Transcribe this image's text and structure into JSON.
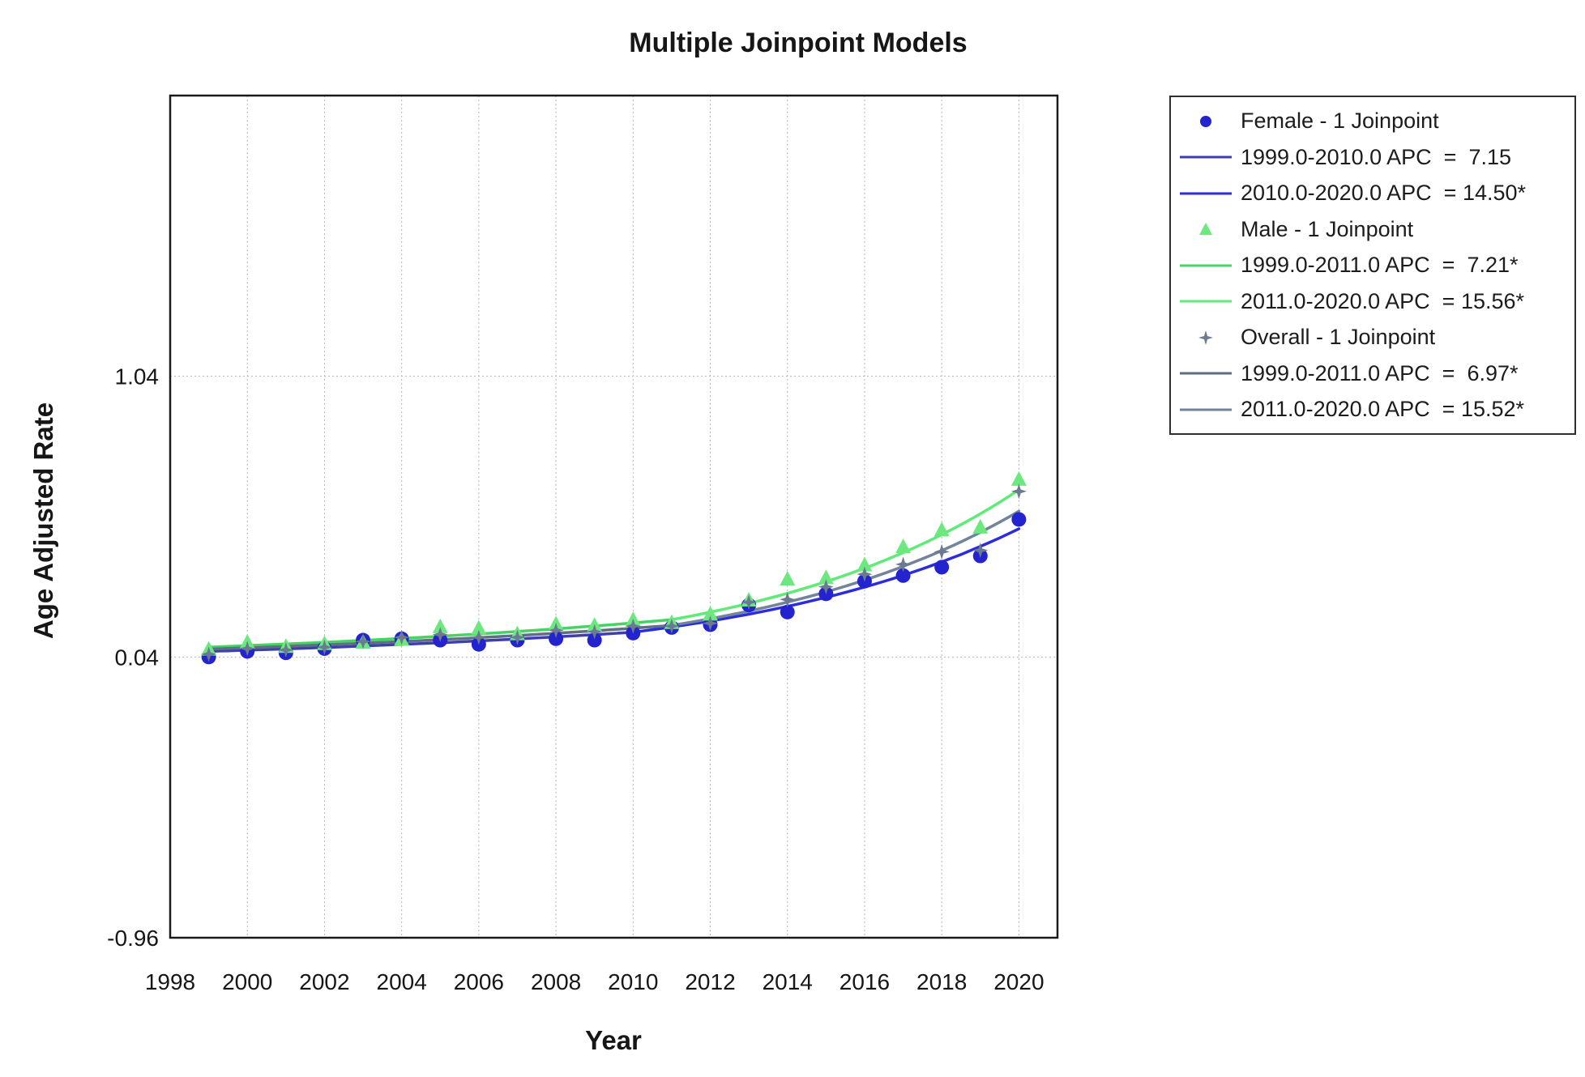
{
  "title": "Multiple Joinpoint Models",
  "axes": {
    "x_label": "Year",
    "y_label": "Age Adjusted Rate"
  },
  "chart_data": {
    "type": "scatter",
    "title": "Multiple Joinpoint Models",
    "xlabel": "Year",
    "ylabel": "Age Adjusted Rate",
    "xlim": [
      1998,
      2021
    ],
    "ylim": [
      -0.96,
      2.04
    ],
    "x_ticks": [
      1998,
      2000,
      2002,
      2004,
      2006,
      2008,
      2010,
      2012,
      2014,
      2016,
      2018,
      2020
    ],
    "y_ticks": [
      -0.96,
      0.04,
      1.04
    ],
    "grid": true,
    "grid_style": "dotted",
    "legend_position": "outside-right",
    "x": [
      1999,
      2000,
      2001,
      2002,
      2003,
      2004,
      2005,
      2006,
      2007,
      2008,
      2009,
      2010,
      2011,
      2012,
      2013,
      2014,
      2015,
      2016,
      2017,
      2018,
      2019,
      2020
    ],
    "series": [
      {
        "name": "Female - 1 Joinpoint",
        "marker": "circle",
        "marker_color": "#2323cf",
        "values": [
          0.04,
          0.06,
          0.055,
          0.07,
          0.1,
          0.105,
          0.1,
          0.085,
          0.1,
          0.105,
          0.1,
          0.125,
          0.145,
          0.155,
          0.225,
          0.2,
          0.265,
          0.31,
          0.33,
          0.36,
          0.4,
          0.53
        ],
        "model": {
          "start_year": 1999,
          "start_value": 0.06,
          "segments": [
            {
              "from": 1999,
              "to": 2010,
              "apc": 7.15,
              "label": "1999.0-2010.0 APC  =  7.15",
              "color": "#3d3db4"
            },
            {
              "from": 2010,
              "to": 2020,
              "apc": 14.5,
              "label": "2010.0-2020.0 APC  = 14.50*",
              "color": "#2b2bdf"
            }
          ]
        }
      },
      {
        "name": "Male - 1 Joinpoint",
        "marker": "triangle",
        "marker_color": "#6ce87e",
        "values": [
          0.065,
          0.09,
          0.075,
          0.085,
          0.09,
          0.1,
          0.145,
          0.14,
          0.12,
          0.155,
          0.15,
          0.17,
          0.16,
          0.19,
          0.24,
          0.315,
          0.32,
          0.365,
          0.43,
          0.49,
          0.5,
          0.67
        ],
        "model": {
          "start_year": 1999,
          "start_value": 0.075,
          "segments": [
            {
              "from": 1999,
              "to": 2011,
              "apc": 7.21,
              "label": "1999.0-2011.0 APC  =  7.21*",
              "color": "#45d463"
            },
            {
              "from": 2011,
              "to": 2020,
              "apc": 15.56,
              "label": "2011.0-2020.0 APC  = 15.56*",
              "color": "#5feb78"
            }
          ]
        }
      },
      {
        "name": "Overall - 1 Joinpoint",
        "marker": "star4",
        "marker_color": "#6b7a8f",
        "values": [
          0.05,
          0.07,
          0.065,
          0.075,
          0.095,
          0.11,
          0.12,
          0.11,
          0.11,
          0.135,
          0.13,
          0.15,
          0.15,
          0.16,
          0.235,
          0.245,
          0.29,
          0.335,
          0.37,
          0.415,
          0.42,
          0.63
        ],
        "model": {
          "start_year": 1999,
          "start_value": 0.068,
          "segments": [
            {
              "from": 1999,
              "to": 2011,
              "apc": 6.97,
              "label": "1999.0-2011.0 APC  =  6.97*",
              "color": "#5d6f82"
            },
            {
              "from": 2011,
              "to": 2020,
              "apc": 15.52,
              "label": "2011.0-2020.0 APC  = 15.52*",
              "color": "#72839a"
            }
          ]
        }
      }
    ]
  },
  "colors": {
    "plot_border": "#1a1a1a",
    "gridline": "#b4b4b4",
    "text": "#161616",
    "legend_border": "#2e2e2e"
  }
}
